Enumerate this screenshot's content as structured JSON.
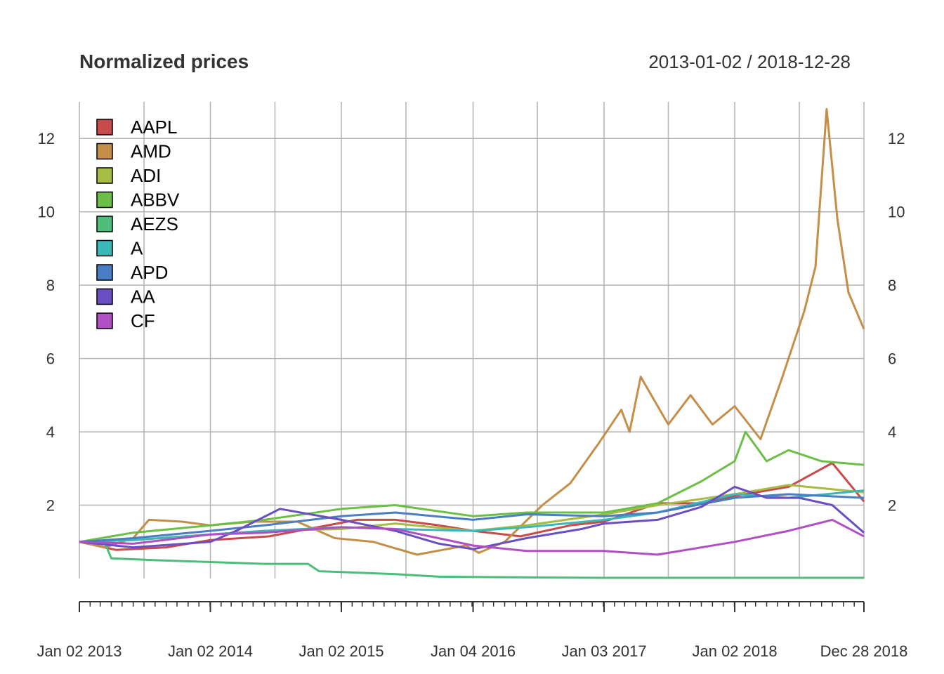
{
  "chart_data": {
    "type": "line",
    "title": "Normalized prices",
    "date_range": "2013-01-02 / 2018-12-28",
    "xlabel": "",
    "ylabel": "",
    "ylim": [
      0,
      13
    ],
    "y_ticks": [
      2,
      4,
      6,
      8,
      10,
      12
    ],
    "x_range": [
      "2013-01-02",
      "2018-12-28"
    ],
    "x_ticks": [
      {
        "date": "2013-01-02",
        "label": "Jan 02 2013"
      },
      {
        "date": "2014-01-02",
        "label": "Jan 02 2014"
      },
      {
        "date": "2015-01-02",
        "label": "Jan 02 2015"
      },
      {
        "date": "2016-01-04",
        "label": "Jan 04 2016"
      },
      {
        "date": "2017-01-03",
        "label": "Jan 03 2017"
      },
      {
        "date": "2018-01-02",
        "label": "Jan 02 2018"
      },
      {
        "date": "2018-12-28",
        "label": "Dec 28 2018"
      }
    ],
    "grid": true,
    "legend_position": "top-left",
    "series": [
      {
        "name": "AAPL",
        "color": "#C94A4A",
        "points": [
          [
            "2013-01-02",
            1.0
          ],
          [
            "2013-04-15",
            0.78
          ],
          [
            "2013-09-01",
            0.85
          ],
          [
            "2014-01-02",
            1.05
          ],
          [
            "2014-06-15",
            1.15
          ],
          [
            "2015-02-15",
            1.6
          ],
          [
            "2015-06-01",
            1.6
          ],
          [
            "2015-10-01",
            1.45
          ],
          [
            "2016-01-04",
            1.3
          ],
          [
            "2016-05-15",
            1.15
          ],
          [
            "2016-10-01",
            1.45
          ],
          [
            "2017-01-03",
            1.55
          ],
          [
            "2017-06-01",
            2.05
          ],
          [
            "2017-10-01",
            2.05
          ],
          [
            "2018-01-02",
            2.25
          ],
          [
            "2018-06-01",
            2.5
          ],
          [
            "2018-10-01",
            3.15
          ],
          [
            "2018-12-28",
            2.1
          ]
        ]
      },
      {
        "name": "AMD",
        "color": "#C48E48",
        "points": [
          [
            "2013-01-02",
            1.0
          ],
          [
            "2013-03-15",
            0.85
          ],
          [
            "2013-06-01",
            1.1
          ],
          [
            "2013-07-15",
            1.6
          ],
          [
            "2013-10-15",
            1.55
          ],
          [
            "2014-01-02",
            1.45
          ],
          [
            "2014-05-01",
            1.55
          ],
          [
            "2014-09-01",
            1.55
          ],
          [
            "2014-12-15",
            1.1
          ],
          [
            "2015-04-01",
            1.0
          ],
          [
            "2015-08-01",
            0.65
          ],
          [
            "2015-12-15",
            0.9
          ],
          [
            "2016-01-20",
            0.7
          ],
          [
            "2016-04-01",
            1.0
          ],
          [
            "2016-07-15",
            2.0
          ],
          [
            "2016-10-01",
            2.6
          ],
          [
            "2016-12-20",
            3.7
          ],
          [
            "2017-02-20",
            4.6
          ],
          [
            "2017-03-15",
            4.0
          ],
          [
            "2017-04-15",
            5.5
          ],
          [
            "2017-07-01",
            4.2
          ],
          [
            "2017-09-01",
            5.0
          ],
          [
            "2017-11-01",
            4.2
          ],
          [
            "2018-01-02",
            4.7
          ],
          [
            "2018-03-15",
            3.8
          ],
          [
            "2018-05-15",
            5.5
          ],
          [
            "2018-07-15",
            7.3
          ],
          [
            "2018-08-15",
            8.5
          ],
          [
            "2018-09-15",
            12.8
          ],
          [
            "2018-10-15",
            9.8
          ],
          [
            "2018-11-15",
            7.8
          ],
          [
            "2018-12-28",
            6.8
          ]
        ]
      },
      {
        "name": "ADI",
        "color": "#A6BC42",
        "points": [
          [
            "2013-01-02",
            1.0
          ],
          [
            "2013-06-01",
            1.05
          ],
          [
            "2014-01-02",
            1.2
          ],
          [
            "2014-06-01",
            1.3
          ],
          [
            "2015-01-02",
            1.35
          ],
          [
            "2015-06-01",
            1.5
          ],
          [
            "2016-01-04",
            1.3
          ],
          [
            "2016-06-01",
            1.45
          ],
          [
            "2017-01-03",
            1.75
          ],
          [
            "2017-06-01",
            2.0
          ],
          [
            "2018-01-02",
            2.3
          ],
          [
            "2018-06-01",
            2.55
          ],
          [
            "2018-12-28",
            2.35
          ]
        ]
      },
      {
        "name": "ABBV",
        "color": "#6BBF47",
        "points": [
          [
            "2013-01-02",
            1.0
          ],
          [
            "2013-06-01",
            1.25
          ],
          [
            "2014-01-02",
            1.45
          ],
          [
            "2014-06-01",
            1.6
          ],
          [
            "2015-01-02",
            1.9
          ],
          [
            "2015-06-01",
            2.0
          ],
          [
            "2016-01-04",
            1.7
          ],
          [
            "2016-06-01",
            1.8
          ],
          [
            "2017-01-03",
            1.8
          ],
          [
            "2017-06-01",
            2.05
          ],
          [
            "2017-10-01",
            2.65
          ],
          [
            "2018-01-02",
            3.2
          ],
          [
            "2018-02-01",
            4.0
          ],
          [
            "2018-04-01",
            3.2
          ],
          [
            "2018-06-01",
            3.5
          ],
          [
            "2018-09-01",
            3.2
          ],
          [
            "2018-12-28",
            3.1
          ]
        ]
      },
      {
        "name": "AEZS",
        "color": "#4DBE7A",
        "points": [
          [
            "2013-01-02",
            1.0
          ],
          [
            "2013-03-15",
            0.95
          ],
          [
            "2013-04-01",
            0.55
          ],
          [
            "2013-08-01",
            0.5
          ],
          [
            "2014-01-02",
            0.45
          ],
          [
            "2014-06-01",
            0.4
          ],
          [
            "2014-10-01",
            0.4
          ],
          [
            "2014-11-01",
            0.2
          ],
          [
            "2015-06-01",
            0.12
          ],
          [
            "2015-10-01",
            0.05
          ],
          [
            "2016-06-01",
            0.03
          ],
          [
            "2017-01-03",
            0.02
          ],
          [
            "2018-01-02",
            0.02
          ],
          [
            "2018-12-28",
            0.02
          ]
        ]
      },
      {
        "name": "A",
        "color": "#3BB7B8",
        "points": [
          [
            "2013-01-02",
            1.0
          ],
          [
            "2013-06-01",
            1.05
          ],
          [
            "2014-01-02",
            1.2
          ],
          [
            "2014-06-01",
            1.3
          ],
          [
            "2015-01-02",
            1.4
          ],
          [
            "2015-06-01",
            1.35
          ],
          [
            "2016-01-04",
            1.3
          ],
          [
            "2016-06-01",
            1.4
          ],
          [
            "2017-01-03",
            1.6
          ],
          [
            "2017-06-01",
            1.8
          ],
          [
            "2018-01-02",
            2.3
          ],
          [
            "2018-06-01",
            2.2
          ],
          [
            "2018-12-28",
            2.4
          ]
        ]
      },
      {
        "name": "APD",
        "color": "#4A7EC4",
        "points": [
          [
            "2013-01-02",
            1.0
          ],
          [
            "2013-06-01",
            1.1
          ],
          [
            "2014-01-02",
            1.3
          ],
          [
            "2014-06-01",
            1.45
          ],
          [
            "2015-01-02",
            1.7
          ],
          [
            "2015-06-01",
            1.8
          ],
          [
            "2016-01-04",
            1.6
          ],
          [
            "2016-06-01",
            1.75
          ],
          [
            "2017-01-03",
            1.7
          ],
          [
            "2017-06-01",
            1.8
          ],
          [
            "2018-01-02",
            2.2
          ],
          [
            "2018-06-01",
            2.3
          ],
          [
            "2018-12-28",
            2.2
          ]
        ]
      },
      {
        "name": "AA",
        "color": "#6A4EC4",
        "points": [
          [
            "2013-01-02",
            1.0
          ],
          [
            "2013-06-01",
            0.85
          ],
          [
            "2014-01-02",
            1.0
          ],
          [
            "2014-03-15",
            1.3
          ],
          [
            "2014-07-15",
            1.9
          ],
          [
            "2015-01-02",
            1.6
          ],
          [
            "2015-06-01",
            1.3
          ],
          [
            "2015-10-01",
            0.95
          ],
          [
            "2016-01-04",
            0.8
          ],
          [
            "2016-06-01",
            1.1
          ],
          [
            "2016-11-01",
            1.35
          ],
          [
            "2017-01-03",
            1.5
          ],
          [
            "2017-06-01",
            1.6
          ],
          [
            "2017-10-01",
            1.95
          ],
          [
            "2018-01-02",
            2.5
          ],
          [
            "2018-04-01",
            2.2
          ],
          [
            "2018-07-01",
            2.2
          ],
          [
            "2018-10-01",
            2.0
          ],
          [
            "2018-12-28",
            1.25
          ]
        ]
      },
      {
        "name": "CF",
        "color": "#B04EC4",
        "points": [
          [
            "2013-01-02",
            1.0
          ],
          [
            "2013-06-01",
            0.95
          ],
          [
            "2014-01-02",
            1.2
          ],
          [
            "2014-06-01",
            1.25
          ],
          [
            "2015-01-02",
            1.4
          ],
          [
            "2015-06-01",
            1.35
          ],
          [
            "2016-01-04",
            0.9
          ],
          [
            "2016-06-01",
            0.75
          ],
          [
            "2017-01-03",
            0.75
          ],
          [
            "2017-06-01",
            0.65
          ],
          [
            "2018-01-02",
            1.0
          ],
          [
            "2018-06-01",
            1.3
          ],
          [
            "2018-10-01",
            1.6
          ],
          [
            "2018-12-28",
            1.15
          ]
        ]
      }
    ]
  }
}
